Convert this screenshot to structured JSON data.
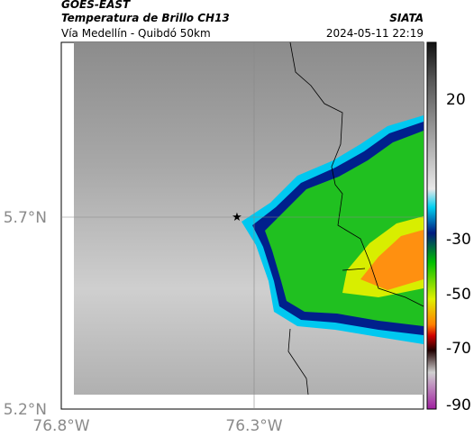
{
  "header": {
    "source": "GOES-EAST",
    "title": "Temperatura de Brillo CH13",
    "org": "SIATA",
    "subtitle": "Vía Medellín - Quibdó 50km",
    "datetime": "2024-05-11 22:19"
  },
  "map": {
    "lon_labels": [
      "76.8°W",
      "76.3°W"
    ],
    "lat_labels": [
      "5.7°N",
      "5.2°N"
    ]
  },
  "colorbar": {
    "ticks": [
      20,
      -30,
      -50,
      -70,
      -90
    ]
  }
}
